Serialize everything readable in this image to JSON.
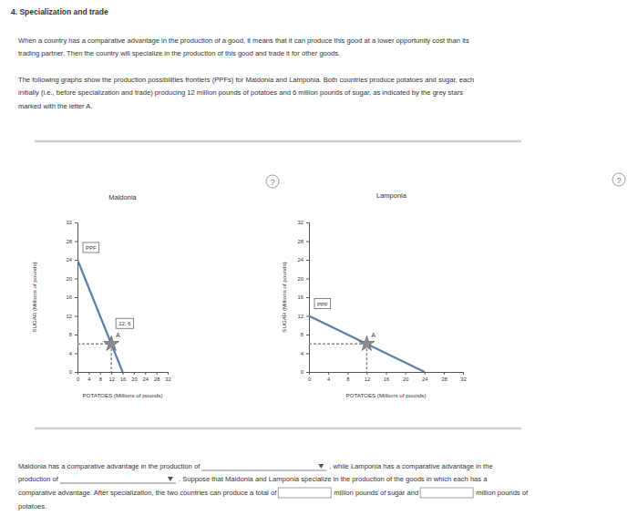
{
  "page": {
    "title": "4. Specialization and trade",
    "paragraphs": [
      [
        "When a country has a comparative advantage in the production of a good, it means that it can produce this good at a lower opportunity cost than its",
        "trading partner. Then the country will specialize in the production of this good and trade it for other goods."
      ],
      [
        "The following graphs show the production possibilities frontiers (PPFs) for Maldonia and Lamponia. Both countries produce potatoes and sugar, each",
        "initially (i.e., before specialization and trade) producing 12 million pounds of potatoes and 6 million pounds of sugar, as indicated by the grey stars",
        "marked with the letter A."
      ]
    ],
    "help_icon": "?",
    "question": [
      [
        {
          "text": "Maldonia has a comparative advantage in the production of"
        },
        {
          "type": "dropdown"
        },
        {
          "text": ", while Lamponia has a comparative advantage in the"
        }
      ],
      [
        {
          "text": "production of"
        },
        {
          "type": "dropdown"
        },
        {
          "text": ". Suppose that Maldonia and Lamponia specialize in the production of the goods in which each has a"
        }
      ],
      [
        {
          "text": "comparative advantage. After specialization, the two countries can produce a total of"
        },
        {
          "type": "input"
        },
        {
          "text": "million pounds of sugar and"
        },
        {
          "type": "input"
        },
        {
          "text": "million pounds of"
        }
      ],
      [
        {
          "text": "potatoes."
        }
      ]
    ]
  },
  "chart_data": [
    {
      "type": "line",
      "title": "Maldonia",
      "x_label": "POTATOES (Millions of pounds)",
      "y_label": "SUGAR (Millions of pounds)",
      "xlim": [
        0,
        32
      ],
      "ylim": [
        0,
        32
      ],
      "xticks": [
        0,
        4,
        8,
        12,
        16,
        20,
        24,
        28,
        32
      ],
      "yticks": [
        0,
        4,
        8,
        12,
        16,
        20,
        24,
        28,
        32
      ],
      "series": [
        {
          "name": "PPF",
          "type": "line",
          "color": "#5b7fa6",
          "x": [
            0,
            16
          ],
          "values": [
            24,
            0
          ]
        },
        {
          "name": "A",
          "type": "scatter",
          "marker": "star",
          "line_style": "dashed",
          "color": "#8c8c8c",
          "x": [
            12
          ],
          "values": [
            6
          ],
          "value_labels": [
            "12, 6"
          ]
        }
      ]
    },
    {
      "type": "line",
      "title": "Lamponia",
      "x_label": "POTATOES (Millions of pounds)",
      "y_label": "SUGAR (Millions of pounds)",
      "xlim": [
        0,
        32
      ],
      "ylim": [
        0,
        32
      ],
      "xticks": [
        0,
        4,
        8,
        12,
        16,
        20,
        24,
        28,
        32
      ],
      "yticks": [
        0,
        4,
        8,
        12,
        16,
        20,
        24,
        28,
        32
      ],
      "series": [
        {
          "name": "PPF",
          "type": "line",
          "color": "#5b7fa6",
          "x": [
            0,
            24
          ],
          "values": [
            12,
            0
          ]
        },
        {
          "name": "A",
          "type": "scatter",
          "marker": "star",
          "line_style": "dashed",
          "color": "#8c8c8c",
          "x": [
            12
          ],
          "values": [
            6
          ]
        }
      ]
    }
  ]
}
